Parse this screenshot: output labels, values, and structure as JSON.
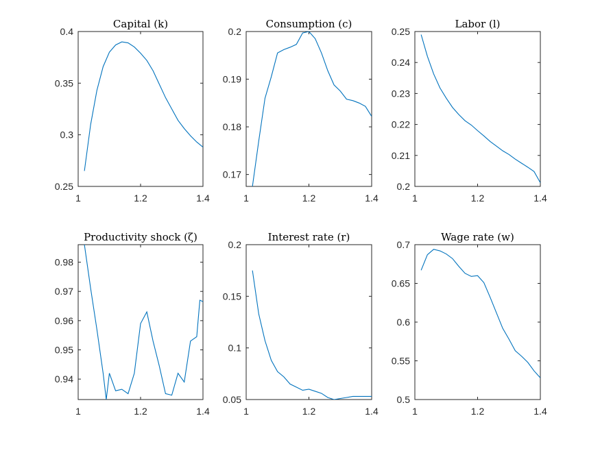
{
  "chart_data": [
    {
      "type": "line",
      "title": "Capital (k)",
      "xlabel": "",
      "ylabel": "",
      "xlim": [
        1,
        1.4
      ],
      "ylim": [
        0.25,
        0.4
      ],
      "xticks": [
        1,
        1.2,
        1.4
      ],
      "xtick_labels": [
        "1",
        "1.2",
        "1.4"
      ],
      "yticks": [
        0.25,
        0.3,
        0.35,
        0.4
      ],
      "ytick_labels": [
        "0.25",
        "0.3",
        "0.35",
        "0.4"
      ],
      "grid": false,
      "color": "#0072BD",
      "x": [
        1.02,
        1.04,
        1.06,
        1.08,
        1.1,
        1.12,
        1.14,
        1.16,
        1.18,
        1.2,
        1.22,
        1.24,
        1.26,
        1.28,
        1.3,
        1.32,
        1.34,
        1.36,
        1.38,
        1.4
      ],
      "y": [
        0.265,
        0.31,
        0.343,
        0.366,
        0.38,
        0.387,
        0.39,
        0.389,
        0.385,
        0.379,
        0.372,
        0.362,
        0.349,
        0.336,
        0.325,
        0.314,
        0.306,
        0.299,
        0.293,
        0.288
      ]
    },
    {
      "type": "line",
      "title": "Consumption (c)",
      "xlabel": "",
      "ylabel": "",
      "xlim": [
        1,
        1.4
      ],
      "ylim": [
        0.1675,
        0.2
      ],
      "xticks": [
        1,
        1.2,
        1.4
      ],
      "xtick_labels": [
        "1",
        "1.2",
        "1.4"
      ],
      "yticks": [
        0.17,
        0.18,
        0.19,
        0.2
      ],
      "ytick_labels": [
        "0.17",
        "0.18",
        "0.19",
        "0.2"
      ],
      "grid": false,
      "color": "#0072BD",
      "x": [
        1.02,
        1.04,
        1.06,
        1.08,
        1.1,
        1.12,
        1.14,
        1.16,
        1.18,
        1.2,
        1.22,
        1.24,
        1.26,
        1.28,
        1.3,
        1.32,
        1.34,
        1.36,
        1.38,
        1.4
      ],
      "y": [
        0.1675,
        0.177,
        0.186,
        0.1905,
        0.1955,
        0.1962,
        0.1967,
        0.1973,
        0.1997,
        0.2,
        0.1985,
        0.1955,
        0.1918,
        0.1888,
        0.1875,
        0.1858,
        0.1855,
        0.185,
        0.1843,
        0.1822
      ]
    },
    {
      "type": "line",
      "title": "Labor (l)",
      "xlabel": "",
      "ylabel": "",
      "xlim": [
        1,
        1.4
      ],
      "ylim": [
        0.2,
        0.25
      ],
      "xticks": [
        1,
        1.2,
        1.4
      ],
      "xtick_labels": [
        "1",
        "1.2",
        "1.4"
      ],
      "yticks": [
        0.2,
        0.21,
        0.22,
        0.23,
        0.24,
        0.25
      ],
      "ytick_labels": [
        "0.2",
        "0.21",
        "0.22",
        "0.23",
        "0.24",
        "0.25"
      ],
      "grid": false,
      "color": "#0072BD",
      "x": [
        1.02,
        1.04,
        1.06,
        1.08,
        1.1,
        1.12,
        1.14,
        1.16,
        1.18,
        1.2,
        1.22,
        1.24,
        1.26,
        1.28,
        1.3,
        1.32,
        1.34,
        1.36,
        1.38,
        1.4
      ],
      "y": [
        0.249,
        0.242,
        0.2363,
        0.2318,
        0.2285,
        0.2255,
        0.2232,
        0.2212,
        0.2198,
        0.218,
        0.2163,
        0.2145,
        0.213,
        0.2115,
        0.2103,
        0.2088,
        0.2075,
        0.2062,
        0.2048,
        0.2012
      ]
    },
    {
      "type": "line",
      "title": "Productivity shock (ζ)",
      "xlabel": "",
      "ylabel": "",
      "xlim": [
        1,
        1.4
      ],
      "ylim": [
        0.933,
        0.986
      ],
      "xticks": [
        1,
        1.2,
        1.4
      ],
      "xtick_labels": [
        "1",
        "1.2",
        "1.4"
      ],
      "yticks": [
        0.94,
        0.95,
        0.96,
        0.97,
        0.98
      ],
      "ytick_labels": [
        "0.94",
        "0.95",
        "0.96",
        "0.97",
        "0.98"
      ],
      "grid": false,
      "color": "#0072BD",
      "x": [
        1.02,
        1.04,
        1.06,
        1.08,
        1.09,
        1.1,
        1.12,
        1.14,
        1.16,
        1.18,
        1.2,
        1.22,
        1.24,
        1.26,
        1.28,
        1.3,
        1.32,
        1.34,
        1.36,
        1.38,
        1.39,
        1.4
      ],
      "y": [
        0.986,
        0.971,
        0.957,
        0.942,
        0.933,
        0.942,
        0.936,
        0.9365,
        0.935,
        0.942,
        0.959,
        0.963,
        0.953,
        0.9445,
        0.935,
        0.9345,
        0.942,
        0.939,
        0.953,
        0.9545,
        0.967,
        0.9665
      ]
    },
    {
      "type": "line",
      "title": "Interest rate (r)",
      "xlabel": "",
      "ylabel": "",
      "xlim": [
        1,
        1.4
      ],
      "ylim": [
        0.05,
        0.2
      ],
      "xticks": [
        1,
        1.2,
        1.4
      ],
      "xtick_labels": [
        "1",
        "1.2",
        "1.4"
      ],
      "yticks": [
        0.05,
        0.1,
        0.15,
        0.2
      ],
      "ytick_labels": [
        "0.05",
        "0.1",
        "0.15",
        "0.2"
      ],
      "grid": false,
      "color": "#0072BD",
      "x": [
        1.02,
        1.04,
        1.06,
        1.08,
        1.1,
        1.12,
        1.14,
        1.16,
        1.18,
        1.2,
        1.22,
        1.24,
        1.26,
        1.28,
        1.3,
        1.32,
        1.34,
        1.36,
        1.38,
        1.4
      ],
      "y": [
        0.175,
        0.133,
        0.107,
        0.088,
        0.077,
        0.072,
        0.065,
        0.062,
        0.059,
        0.06,
        0.058,
        0.056,
        0.052,
        0.05,
        0.051,
        0.052,
        0.053,
        0.053,
        0.053,
        0.053
      ]
    },
    {
      "type": "line",
      "title": "Wage rate (w)",
      "xlabel": "",
      "ylabel": "",
      "xlim": [
        1,
        1.4
      ],
      "ylim": [
        0.5,
        0.7
      ],
      "xticks": [
        1,
        1.2,
        1.4
      ],
      "xtick_labels": [
        "1",
        "1.2",
        "1.4"
      ],
      "yticks": [
        0.5,
        0.55,
        0.6,
        0.65,
        0.7
      ],
      "ytick_labels": [
        "0.5",
        "0.55",
        "0.6",
        "0.65",
        "0.7"
      ],
      "grid": false,
      "color": "#0072BD",
      "x": [
        1.02,
        1.04,
        1.06,
        1.08,
        1.1,
        1.12,
        1.14,
        1.16,
        1.18,
        1.2,
        1.22,
        1.24,
        1.26,
        1.28,
        1.3,
        1.32,
        1.34,
        1.36,
        1.38,
        1.4
      ],
      "y": [
        0.667,
        0.687,
        0.694,
        0.692,
        0.688,
        0.682,
        0.672,
        0.663,
        0.659,
        0.66,
        0.651,
        0.632,
        0.612,
        0.592,
        0.578,
        0.563,
        0.556,
        0.548,
        0.537,
        0.528
      ]
    }
  ]
}
